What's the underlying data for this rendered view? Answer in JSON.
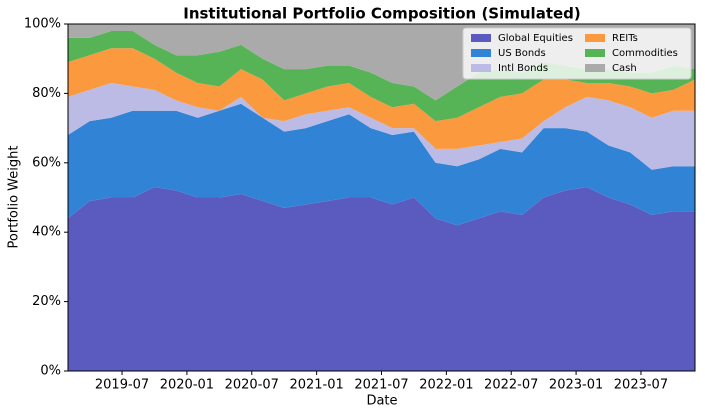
{
  "chart_data": {
    "type": "stacked-area",
    "title": "Institutional Portfolio Composition (Simulated)",
    "xlabel": "Date",
    "ylabel": "Portfolio Weight",
    "x": [
      "2019-02",
      "2019-04",
      "2019-06",
      "2019-08",
      "2019-10",
      "2019-12",
      "2020-02",
      "2020-04",
      "2020-06",
      "2020-08",
      "2020-10",
      "2020-12",
      "2021-02",
      "2021-04",
      "2021-06",
      "2021-08",
      "2021-10",
      "2021-12",
      "2022-02",
      "2022-04",
      "2022-06",
      "2022-08",
      "2022-10",
      "2022-12",
      "2023-02",
      "2023-04",
      "2023-06",
      "2023-08",
      "2023-10",
      "2023-12"
    ],
    "series": [
      {
        "name": "Global Equities",
        "color": "#5b5bbf",
        "values": [
          44,
          49,
          50,
          50,
          53,
          52,
          50,
          50,
          51,
          49,
          47,
          48,
          49,
          50,
          50,
          48,
          50,
          44,
          42,
          44,
          46,
          45,
          50,
          52,
          53,
          50,
          48,
          45,
          46,
          46
        ]
      },
      {
        "name": "US Bonds",
        "color": "#3183d5",
        "values": [
          24,
          23,
          23,
          25,
          22,
          23,
          23,
          25,
          26,
          24,
          22,
          22,
          23,
          24,
          20,
          20,
          19,
          16,
          17,
          17,
          18,
          18,
          20,
          18,
          16,
          15,
          15,
          13,
          13,
          13
        ]
      },
      {
        "name": "Intl Bonds",
        "color": "#bbbbe6",
        "values": [
          11,
          9,
          10,
          7,
          6,
          3,
          3,
          0,
          2,
          0,
          3,
          4,
          3,
          2,
          3,
          2,
          1,
          4,
          5,
          4,
          2,
          4,
          2,
          6,
          10,
          13,
          13,
          15,
          16,
          16
        ]
      },
      {
        "name": "REITs",
        "color": "#fb993f",
        "values": [
          10,
          10,
          10,
          11,
          9,
          8,
          7,
          7,
          8,
          11,
          6,
          6,
          7,
          7,
          6,
          6,
          7,
          8,
          9,
          11,
          13,
          13,
          12,
          8,
          4,
          5,
          6,
          7,
          6,
          9
        ]
      },
      {
        "name": "Commodities",
        "color": "#56b356",
        "values": [
          7,
          5,
          5,
          5,
          4,
          5,
          8,
          10,
          7,
          6,
          9,
          7,
          6,
          5,
          7,
          7,
          5,
          6,
          9,
          10,
          8,
          6,
          5,
          4,
          4,
          4,
          4,
          6,
          7,
          3
        ]
      },
      {
        "name": "Cash",
        "color": "#aaaaaa",
        "values": [
          4,
          4,
          2,
          2,
          6,
          9,
          9,
          8,
          6,
          10,
          13,
          13,
          12,
          12,
          14,
          17,
          18,
          22,
          18,
          14,
          13,
          14,
          11,
          12,
          13,
          13,
          14,
          14,
          12,
          13
        ]
      }
    ],
    "xlim": [
      "2019-02",
      "2023-12"
    ],
    "xticks": [
      "2019-07",
      "2020-01",
      "2020-07",
      "2021-01",
      "2021-07",
      "2022-01",
      "2022-07",
      "2023-01",
      "2023-07"
    ],
    "ylim": [
      0,
      100
    ],
    "yticks": [
      {
        "value": 0,
        "label": "0%"
      },
      {
        "value": 20,
        "label": "20%"
      },
      {
        "value": 40,
        "label": "40%"
      },
      {
        "value": 60,
        "label": "60%"
      },
      {
        "value": 80,
        "label": "80%"
      },
      {
        "value": 100,
        "label": "100%"
      }
    ],
    "legend": "upper right",
    "legend_columns": 2
  }
}
